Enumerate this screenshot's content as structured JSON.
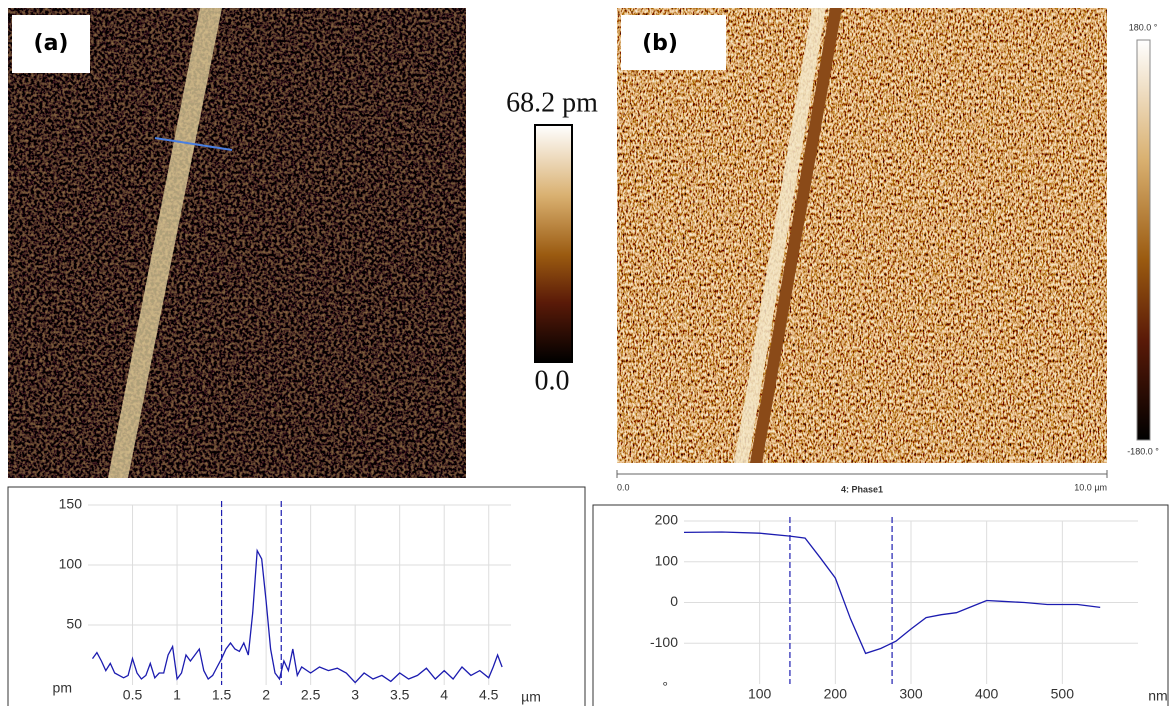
{
  "figure": {
    "panel_a": "(a)",
    "panel_b": "(b)",
    "colorbar_a_max": "68.2 pm",
    "colorbar_a_min": "0.0",
    "colorbar_b_max": "180.0 °",
    "colorbar_b_min": "-180.0 °",
    "scale_start": "0.0",
    "scale_title": "4: Phase1",
    "scale_end": "10.0 µm"
  },
  "chart_data": [
    {
      "type": "line",
      "x_label": "µm",
      "y_label": "pm",
      "color": "#1c1cb0",
      "grid": true,
      "xlim": [
        0,
        4.75
      ],
      "ylim": [
        0,
        150
      ],
      "xticks": [
        0.5,
        1,
        1.5,
        2,
        2.5,
        3,
        3.5,
        4,
        4.5
      ],
      "yticks": [
        50,
        100,
        150
      ],
      "markers": [
        1.5,
        2.17
      ],
      "x": [
        0.05,
        0.1,
        0.15,
        0.2,
        0.25,
        0.3,
        0.35,
        0.4,
        0.45,
        0.5,
        0.55,
        0.6,
        0.65,
        0.7,
        0.75,
        0.8,
        0.85,
        0.9,
        0.95,
        1.0,
        1.05,
        1.1,
        1.15,
        1.2,
        1.25,
        1.3,
        1.35,
        1.4,
        1.45,
        1.5,
        1.55,
        1.6,
        1.65,
        1.7,
        1.75,
        1.8,
        1.85,
        1.9,
        1.95,
        2.0,
        2.05,
        2.1,
        2.15,
        2.2,
        2.25,
        2.3,
        2.35,
        2.4,
        2.5,
        2.6,
        2.7,
        2.8,
        2.9,
        3.0,
        3.1,
        3.2,
        3.3,
        3.4,
        3.5,
        3.6,
        3.7,
        3.8,
        3.9,
        4.0,
        4.1,
        4.2,
        4.3,
        4.4,
        4.5,
        4.55,
        4.6,
        4.65
      ],
      "values": [
        22,
        27,
        20,
        12,
        18,
        10,
        8,
        6,
        8,
        22,
        10,
        5,
        8,
        18,
        6,
        10,
        10,
        25,
        32,
        5,
        10,
        25,
        20,
        25,
        30,
        12,
        5,
        8,
        15,
        22,
        30,
        35,
        30,
        28,
        35,
        25,
        60,
        112,
        105,
        70,
        30,
        10,
        5,
        20,
        12,
        30,
        8,
        15,
        10,
        15,
        12,
        14,
        10,
        2,
        10,
        5,
        8,
        3,
        10,
        5,
        8,
        14,
        5,
        12,
        5,
        15,
        8,
        12,
        6,
        15,
        25,
        15
      ]
    },
    {
      "type": "line",
      "x_label": "nm",
      "y_label": "°",
      "color": "#1c1cb0",
      "grid": true,
      "xlim": [
        0,
        600
      ],
      "ylim": [
        -200,
        200
      ],
      "xticks": [
        100,
        200,
        300,
        400,
        500
      ],
      "yticks": [
        -100,
        0,
        100,
        200
      ],
      "markers": [
        140,
        275
      ],
      "x": [
        0,
        50,
        100,
        140,
        160,
        180,
        200,
        220,
        240,
        260,
        280,
        300,
        320,
        340,
        360,
        380,
        400,
        420,
        450,
        480,
        520,
        550
      ],
      "values": [
        172,
        173,
        170,
        163,
        158,
        110,
        60,
        -40,
        -125,
        -113,
        -95,
        -65,
        -37,
        -30,
        -25,
        -10,
        5,
        3,
        0,
        -5,
        -5,
        -12
      ]
    }
  ]
}
